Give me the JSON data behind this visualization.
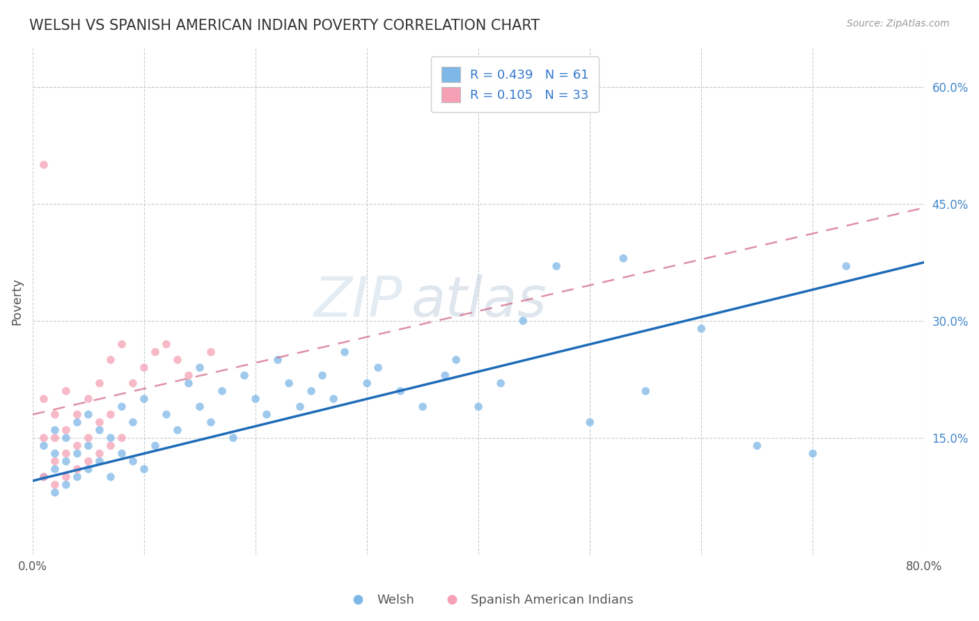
{
  "title": "WELSH VS SPANISH AMERICAN INDIAN POVERTY CORRELATION CHART",
  "source": "Source: ZipAtlas.com",
  "ylabel": "Poverty",
  "xlim": [
    0.0,
    0.8
  ],
  "ylim": [
    0.0,
    0.65
  ],
  "x_ticks": [
    0.0,
    0.1,
    0.2,
    0.3,
    0.4,
    0.5,
    0.6,
    0.7,
    0.8
  ],
  "x_tick_labels": [
    "0.0%",
    "",
    "",
    "",
    "",
    "",
    "",
    "",
    "80.0%"
  ],
  "y_tick_labels_right": [
    "15.0%",
    "30.0%",
    "45.0%",
    "60.0%"
  ],
  "y_ticks_right": [
    0.15,
    0.3,
    0.45,
    0.6
  ],
  "welsh_R": 0.439,
  "welsh_N": 61,
  "spanish_R": 0.105,
  "spanish_N": 33,
  "welsh_color": "#7EB8E8",
  "welsh_line_color": "#1E6BB8",
  "spanish_color": "#F5A0B5",
  "spanish_line_color": "#D06080",
  "welsh_x": [
    0.01,
    0.01,
    0.02,
    0.02,
    0.02,
    0.02,
    0.03,
    0.03,
    0.03,
    0.04,
    0.04,
    0.04,
    0.05,
    0.05,
    0.05,
    0.06,
    0.06,
    0.07,
    0.07,
    0.08,
    0.08,
    0.09,
    0.09,
    0.1,
    0.1,
    0.11,
    0.12,
    0.13,
    0.14,
    0.15,
    0.15,
    0.16,
    0.17,
    0.18,
    0.19,
    0.2,
    0.21,
    0.22,
    0.23,
    0.24,
    0.25,
    0.26,
    0.27,
    0.28,
    0.3,
    0.31,
    0.33,
    0.35,
    0.37,
    0.38,
    0.4,
    0.42,
    0.44,
    0.47,
    0.5,
    0.53,
    0.55,
    0.6,
    0.65,
    0.7,
    0.73
  ],
  "welsh_y": [
    0.1,
    0.14,
    0.08,
    0.11,
    0.13,
    0.16,
    0.09,
    0.12,
    0.15,
    0.1,
    0.13,
    0.17,
    0.11,
    0.14,
    0.18,
    0.12,
    0.16,
    0.1,
    0.15,
    0.13,
    0.19,
    0.12,
    0.17,
    0.11,
    0.2,
    0.14,
    0.18,
    0.16,
    0.22,
    0.19,
    0.24,
    0.17,
    0.21,
    0.15,
    0.23,
    0.2,
    0.18,
    0.25,
    0.22,
    0.19,
    0.21,
    0.23,
    0.2,
    0.26,
    0.22,
    0.24,
    0.21,
    0.19,
    0.23,
    0.25,
    0.19,
    0.22,
    0.3,
    0.37,
    0.17,
    0.38,
    0.21,
    0.29,
    0.14,
    0.13,
    0.37
  ],
  "spanish_x": [
    0.01,
    0.01,
    0.01,
    0.02,
    0.02,
    0.02,
    0.02,
    0.03,
    0.03,
    0.03,
    0.03,
    0.04,
    0.04,
    0.04,
    0.05,
    0.05,
    0.05,
    0.06,
    0.06,
    0.06,
    0.07,
    0.07,
    0.07,
    0.08,
    0.08,
    0.09,
    0.1,
    0.11,
    0.12,
    0.13,
    0.14,
    0.16,
    0.01
  ],
  "spanish_y": [
    0.1,
    0.15,
    0.2,
    0.09,
    0.12,
    0.15,
    0.18,
    0.1,
    0.13,
    0.16,
    0.21,
    0.11,
    0.14,
    0.18,
    0.12,
    0.15,
    0.2,
    0.13,
    0.17,
    0.22,
    0.14,
    0.18,
    0.25,
    0.15,
    0.27,
    0.22,
    0.24,
    0.26,
    0.27,
    0.25,
    0.23,
    0.26,
    0.5
  ],
  "welsh_line_start_y": 0.095,
  "welsh_line_end_y": 0.375,
  "spanish_line_start_y": 0.18,
  "spanish_line_end_y": 0.445
}
